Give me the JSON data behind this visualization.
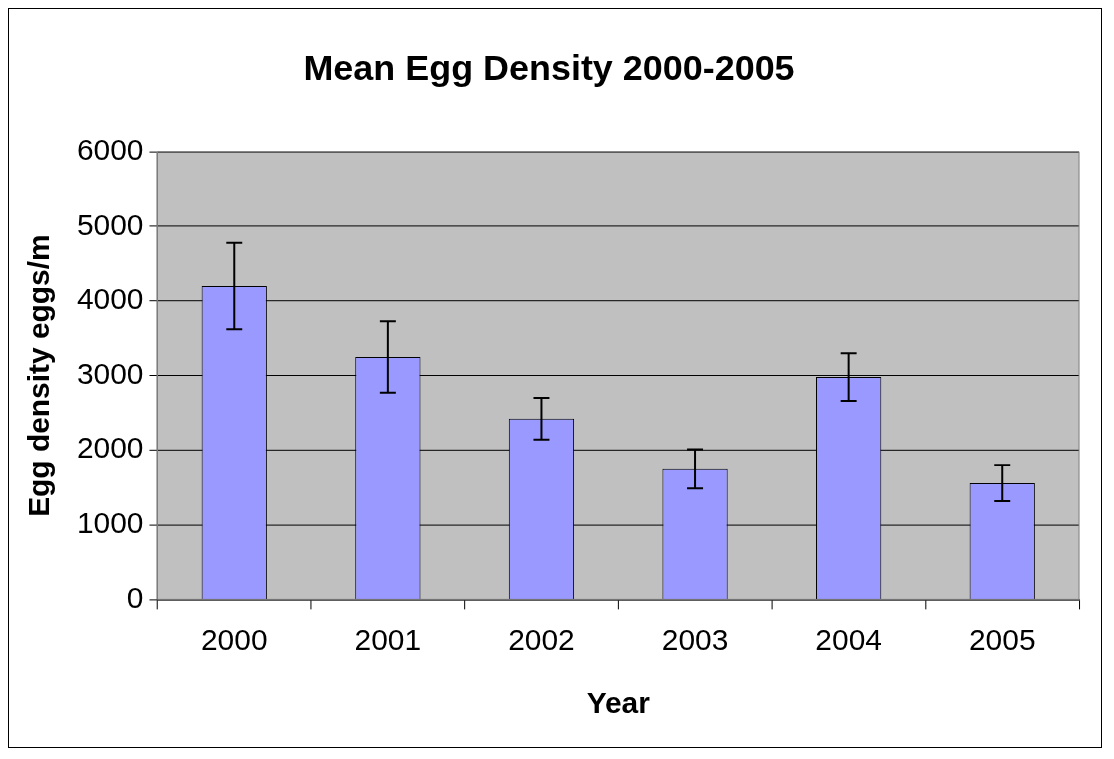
{
  "chart_data": {
    "type": "bar",
    "title": "Mean Egg Density 2000-2005",
    "xlabel": "Year",
    "ylabel": "Egg density eggs/m",
    "categories": [
      "2000",
      "2001",
      "2002",
      "2003",
      "2004",
      "2005"
    ],
    "values": [
      4200,
      3250,
      2420,
      1750,
      2980,
      1560
    ],
    "errors": [
      580,
      480,
      280,
      260,
      320,
      240
    ],
    "color": "#9999ff",
    "ylim": [
      0,
      6000
    ],
    "yticks": [
      0,
      1000,
      2000,
      3000,
      4000,
      5000,
      6000
    ],
    "grid": "y",
    "legend": false
  }
}
